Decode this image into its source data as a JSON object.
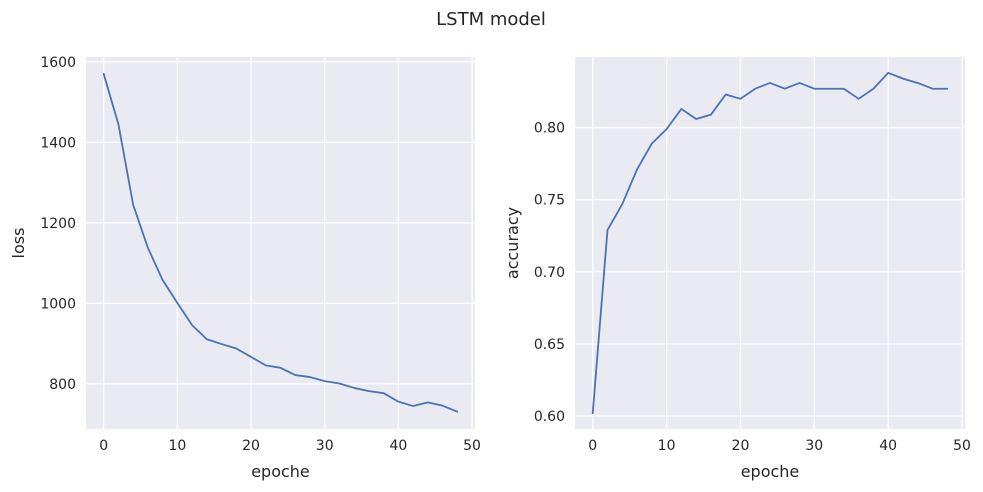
{
  "figure": {
    "title": "LSTM model",
    "background": "#ffffff",
    "axes_facecolor": "#eaeaf2",
    "grid_color": "#ffffff",
    "line_color": "#4c72b0"
  },
  "chart_data": [
    {
      "type": "line",
      "title": "",
      "xlabel": "epoche",
      "ylabel": "loss",
      "grid": true,
      "xlim": [
        -2.4,
        50.4
      ],
      "ylim": [
        688,
        1612
      ],
      "xticks": [
        0,
        10,
        20,
        30,
        40,
        50
      ],
      "xtick_labels": [
        "0",
        "10",
        "20",
        "30",
        "40",
        "50"
      ],
      "yticks": [
        800,
        1000,
        1200,
        1400,
        1600
      ],
      "ytick_labels": [
        "800",
        "1000",
        "1200",
        "1400",
        "1600"
      ],
      "series": [
        {
          "x": [
            0,
            2,
            4,
            6,
            8,
            10,
            12,
            14,
            16,
            18,
            20,
            22,
            24,
            26,
            28,
            30,
            32,
            34,
            36,
            38,
            40,
            42,
            44,
            46,
            48
          ],
          "y": [
            1570,
            1445,
            1245,
            1138,
            1058,
            1001,
            946,
            911,
            899,
            888,
            867,
            846,
            840,
            822,
            817,
            807,
            801,
            790,
            782,
            777,
            756,
            745,
            754,
            746,
            731
          ]
        }
      ]
    },
    {
      "type": "line",
      "title": "",
      "xlabel": "epoche",
      "ylabel": "accuracy",
      "grid": true,
      "xlim": [
        -2.4,
        50.4
      ],
      "ylim": [
        0.591,
        0.849
      ],
      "xticks": [
        0,
        10,
        20,
        30,
        40,
        50
      ],
      "xtick_labels": [
        "0",
        "10",
        "20",
        "30",
        "40",
        "50"
      ],
      "yticks": [
        0.6,
        0.65,
        0.7,
        0.75,
        0.8
      ],
      "ytick_labels": [
        "0.60",
        "0.65",
        "0.70",
        "0.75",
        "0.80"
      ],
      "series": [
        {
          "x": [
            0,
            2,
            4,
            6,
            8,
            10,
            12,
            14,
            16,
            18,
            20,
            22,
            24,
            26,
            28,
            30,
            32,
            34,
            36,
            38,
            40,
            42,
            44,
            46,
            48
          ],
          "y": [
            0.602,
            0.729,
            0.747,
            0.771,
            0.789,
            0.799,
            0.813,
            0.806,
            0.809,
            0.823,
            0.82,
            0.827,
            0.831,
            0.827,
            0.831,
            0.827,
            0.827,
            0.827,
            0.82,
            0.827,
            0.838,
            0.834,
            0.831,
            0.827,
            0.827
          ]
        }
      ]
    }
  ]
}
